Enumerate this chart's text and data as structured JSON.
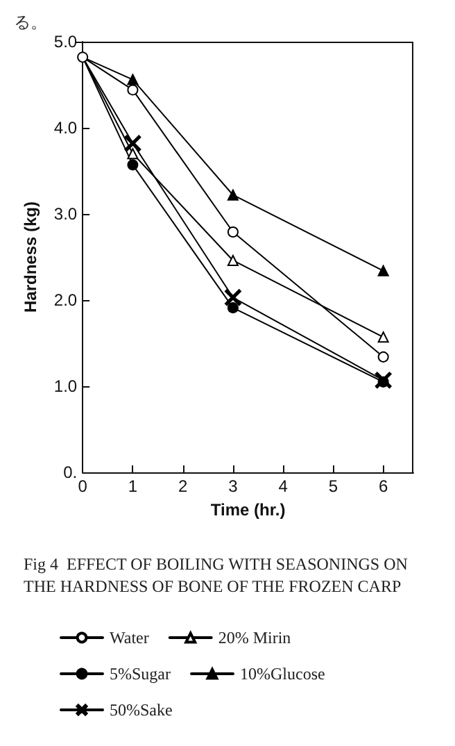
{
  "chart_data": {
    "type": "line",
    "title": "Fig 4  EFFECT OF BOILING WITH SEASONINGS ON THE HARDNESS OF BONE OF THE FROZEN CARP",
    "xlabel": "Time (hr.)",
    "ylabel": "Hardness (kg)",
    "annotations": [
      "る。"
    ],
    "x": [
      0,
      1,
      3,
      6
    ],
    "xlim": [
      0,
      6.6
    ],
    "xticks": [
      0,
      1,
      2,
      3,
      4,
      5,
      6
    ],
    "ylim": [
      0,
      5
    ],
    "yticks": [
      {
        "value": 0,
        "label": "0."
      },
      {
        "value": 1,
        "label": "1.0"
      },
      {
        "value": 2,
        "label": "2.0"
      },
      {
        "value": 3,
        "label": "3.0"
      },
      {
        "value": 4,
        "label": "4.0"
      },
      {
        "value": 5,
        "label": "5.0"
      }
    ],
    "grid": false,
    "legend": "bottom",
    "line_style": "solid",
    "series": [
      {
        "name": "Water",
        "color": "#000000",
        "colors": [
          "#ffffff",
          "#ffffff",
          "#ffffff",
          "#ffffff"
        ],
        "marker": "circle",
        "values": [
          4.82,
          4.44,
          2.79,
          1.34
        ]
      },
      {
        "name": "20% Mirin",
        "color": "#000000",
        "colors": [
          "#ffffff",
          "#ffffff",
          "#ffffff",
          "#ffffff"
        ],
        "marker": "triangle",
        "values": [
          4.82,
          3.7,
          2.46,
          1.57
        ]
      },
      {
        "name": "5%Sugar",
        "color": "#000000",
        "marker": "circle",
        "values": [
          4.82,
          3.57,
          1.91,
          1.05
        ]
      },
      {
        "name": "10%Glucose",
        "color": "#000000",
        "marker": "triangle",
        "values": [
          4.82,
          4.56,
          3.22,
          2.34
        ]
      },
      {
        "name": "50%Sake",
        "color": "#000000",
        "marker": "cross",
        "values": [
          4.82,
          3.82,
          2.03,
          1.07
        ]
      }
    ]
  }
}
